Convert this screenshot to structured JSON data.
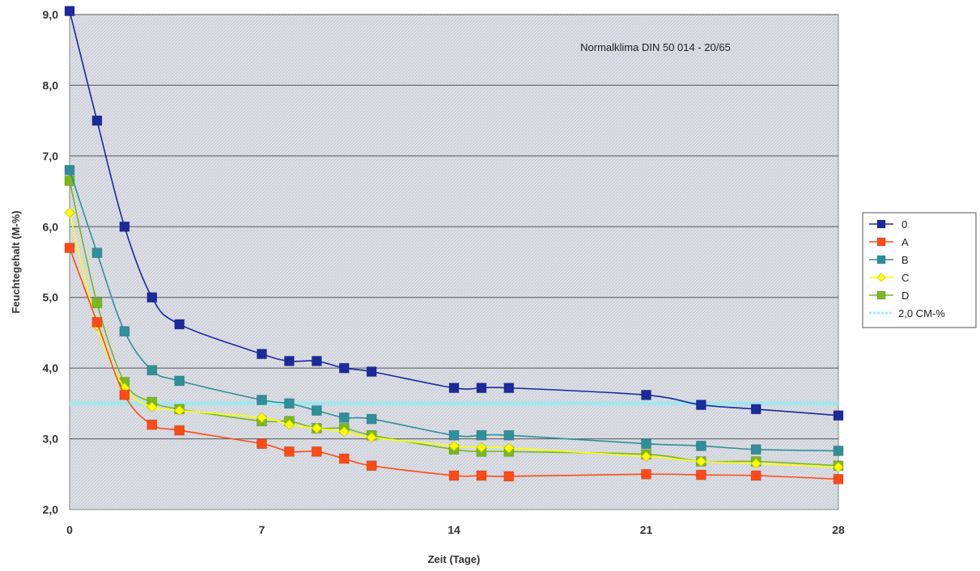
{
  "chart_data": {
    "type": "line",
    "title": "",
    "annotation": "Normalklima DIN 50 014 - 20/65",
    "xlabel": "Zeit (Tage)",
    "ylabel": "Feuchtegehalt (M-%)",
    "xlim": [
      0,
      28
    ],
    "ylim": [
      2.0,
      9.0
    ],
    "xticks": [
      0,
      7,
      14,
      21,
      28
    ],
    "xtick_labels": [
      "0",
      "7",
      "14",
      "21",
      "28"
    ],
    "yticks": [
      2.0,
      3.0,
      4.0,
      5.0,
      6.0,
      7.0,
      8.0,
      9.0
    ],
    "ytick_labels": [
      "2,0",
      "3,0",
      "4,0",
      "5,0",
      "6,0",
      "7,0",
      "8,0",
      "9,0"
    ],
    "grid": "horizontal",
    "legend_position": "right",
    "series": [
      {
        "name": "0",
        "color": "#1a2a9c",
        "marker": "square",
        "points": [
          [
            0,
            9.05
          ],
          [
            1,
            7.5
          ],
          [
            2,
            6.0
          ],
          [
            3,
            5.0
          ],
          [
            4,
            4.62
          ],
          [
            7,
            4.2
          ],
          [
            8,
            4.1
          ],
          [
            9,
            4.1
          ],
          [
            10,
            4.0
          ],
          [
            11,
            3.95
          ],
          [
            14,
            3.72
          ],
          [
            15,
            3.72
          ],
          [
            16,
            3.72
          ],
          [
            21,
            3.62
          ],
          [
            23,
            3.48
          ],
          [
            25,
            3.42
          ],
          [
            28,
            3.33
          ]
        ]
      },
      {
        "name": "A",
        "color": "#ff4a16",
        "marker": "square",
        "points": [
          [
            0,
            5.7
          ],
          [
            1,
            4.65
          ],
          [
            2,
            3.62
          ],
          [
            3,
            3.2
          ],
          [
            4,
            3.12
          ],
          [
            7,
            2.93
          ],
          [
            8,
            2.82
          ],
          [
            9,
            2.82
          ],
          [
            10,
            2.72
          ],
          [
            11,
            2.62
          ],
          [
            14,
            2.48
          ],
          [
            15,
            2.48
          ],
          [
            16,
            2.47
          ],
          [
            21,
            2.5
          ],
          [
            23,
            2.49
          ],
          [
            25,
            2.48
          ],
          [
            28,
            2.43
          ]
        ]
      },
      {
        "name": "B",
        "color": "#2f8f9a",
        "marker": "square",
        "points": [
          [
            0,
            6.8
          ],
          [
            1,
            5.63
          ],
          [
            2,
            4.52
          ],
          [
            3,
            3.97
          ],
          [
            4,
            3.82
          ],
          [
            7,
            3.55
          ],
          [
            8,
            3.5
          ],
          [
            9,
            3.4
          ],
          [
            10,
            3.3
          ],
          [
            11,
            3.28
          ],
          [
            14,
            3.05
          ],
          [
            15,
            3.05
          ],
          [
            16,
            3.05
          ],
          [
            21,
            2.93
          ],
          [
            23,
            2.9
          ],
          [
            25,
            2.85
          ],
          [
            28,
            2.83
          ]
        ]
      },
      {
        "name": "C",
        "color": "#ffff00",
        "marker": "diamond",
        "points": [
          [
            0,
            6.2
          ],
          [
            1,
            4.6
          ],
          [
            2,
            3.72
          ],
          [
            3,
            3.45
          ],
          [
            4,
            3.4
          ],
          [
            7,
            3.3
          ],
          [
            8,
            3.2
          ],
          [
            9,
            3.15
          ],
          [
            10,
            3.1
          ],
          [
            11,
            3.02
          ],
          [
            14,
            2.9
          ],
          [
            15,
            2.88
          ],
          [
            16,
            2.87
          ],
          [
            21,
            2.75
          ],
          [
            23,
            2.68
          ],
          [
            25,
            2.65
          ],
          [
            28,
            2.6
          ]
        ]
      },
      {
        "name": "D",
        "color": "#77b91e",
        "marker": "square",
        "points": [
          [
            0,
            6.65
          ],
          [
            1,
            4.92
          ],
          [
            2,
            3.8
          ],
          [
            3,
            3.52
          ],
          [
            4,
            3.42
          ],
          [
            7,
            3.25
          ],
          [
            8,
            3.25
          ],
          [
            9,
            3.15
          ],
          [
            10,
            3.15
          ],
          [
            11,
            3.05
          ],
          [
            14,
            2.85
          ],
          [
            15,
            2.82
          ],
          [
            16,
            2.82
          ],
          [
            21,
            2.78
          ],
          [
            23,
            2.68
          ],
          [
            25,
            2.68
          ],
          [
            28,
            2.62
          ]
        ]
      }
    ],
    "reference_line": {
      "name": "2,0 CM-%",
      "color": "#9fe8f0",
      "y": 3.5
    }
  },
  "colors": {
    "plot_background": "#dde0e6",
    "plot_hatch": "#c7cad3",
    "gridline": "#555555"
  }
}
